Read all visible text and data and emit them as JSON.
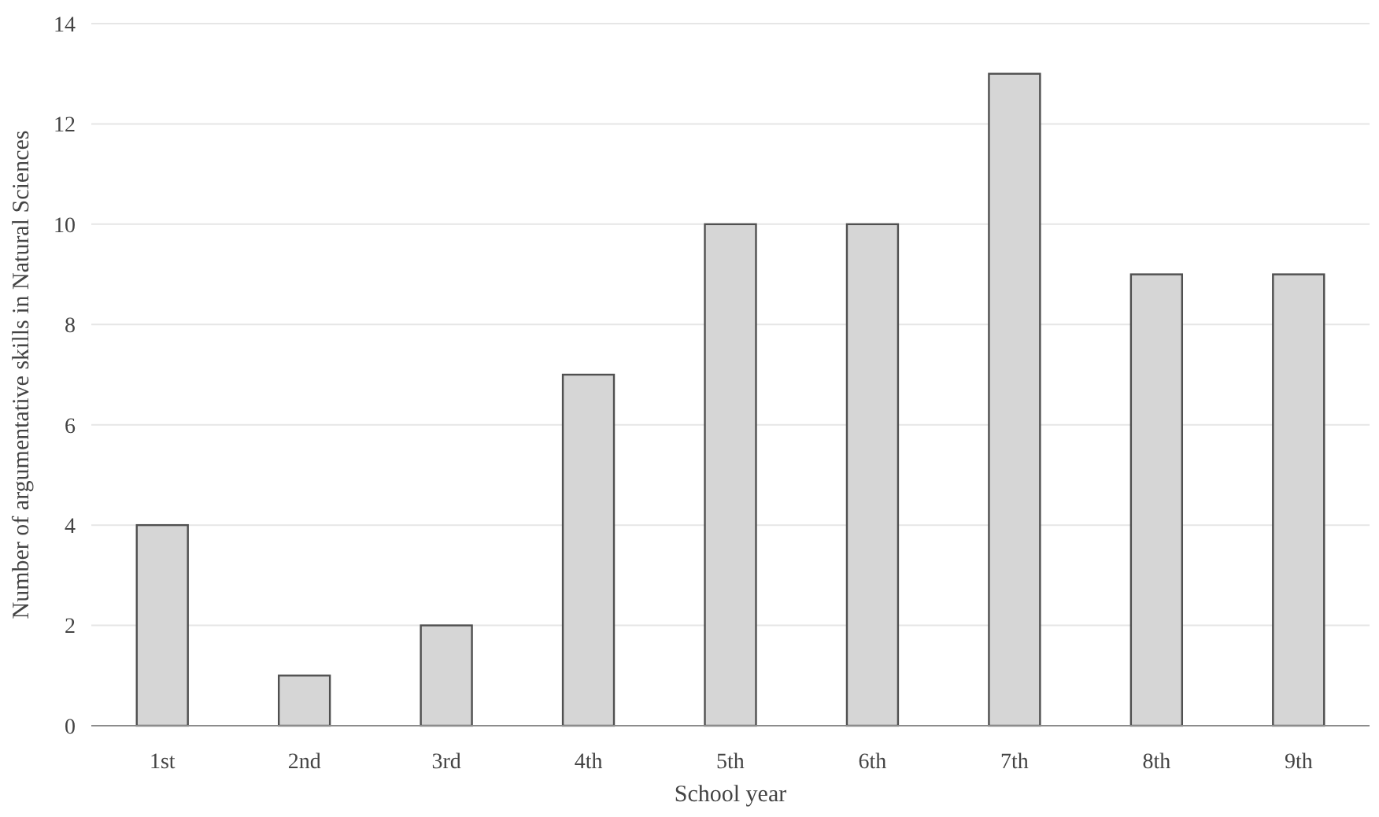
{
  "chart_data": {
    "type": "bar",
    "xlabel": "School year",
    "ylabel": "Number of argumentative skills in Natural Sciences",
    "categories": [
      "1st",
      "2nd",
      "3rd",
      "4th",
      "5th",
      "6th",
      "7th",
      "8th",
      "9th"
    ],
    "values": [
      4,
      1,
      2,
      7,
      10,
      10,
      13,
      9,
      9
    ],
    "color": "#d6d6d6",
    "ylim": [
      0,
      14
    ],
    "yticks": [
      0,
      2,
      4,
      6,
      8,
      10,
      12,
      14
    ],
    "grid": "y"
  }
}
